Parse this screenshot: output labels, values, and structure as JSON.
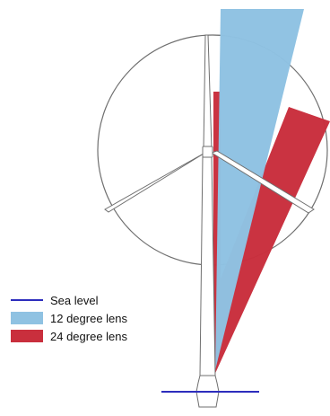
{
  "legend": {
    "items": [
      {
        "label": "Sea level",
        "kind": "line",
        "color": "#2d2dbd"
      },
      {
        "label": "12 degree lens",
        "kind": "fill",
        "color": "#8fc2e2"
      },
      {
        "label": "24 degree lens",
        "kind": "fill",
        "color": "#c92f3d"
      }
    ]
  },
  "elements": {
    "rotor_circle": "rotor-disc-outline",
    "tower": "turbine-tower",
    "blades": [
      "blade-up",
      "blade-left",
      "blade-right"
    ],
    "nacelle": "turbine-nacelle",
    "base": "turbine-base",
    "sea_level": "sea-level-line",
    "lens12": "lens-12-degree-beam",
    "lens24": "lens-24-degree-beam"
  },
  "colors": {
    "outline": "#6f6f6f",
    "tower_fill": "#ffffff",
    "lens12": "#8fc2e2",
    "lens24": "#c92f3d",
    "sea_level": "#2d2dbd"
  }
}
